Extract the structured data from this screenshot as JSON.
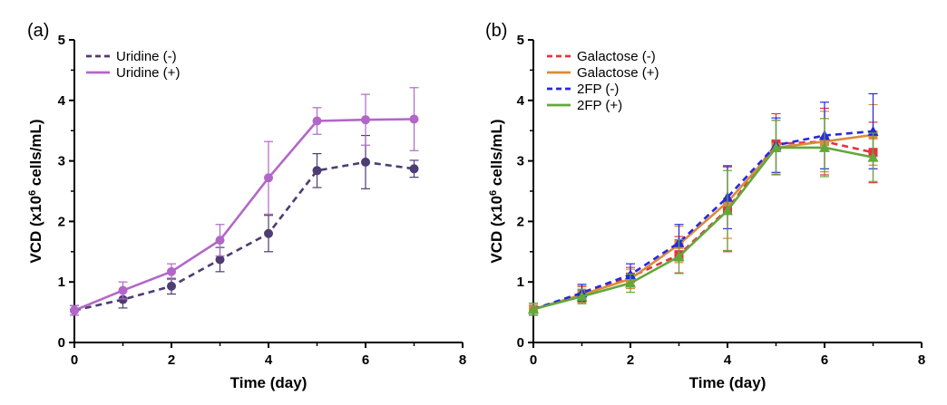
{
  "chart_data": [
    {
      "type": "line",
      "panel_label": "(a)",
      "xlabel": "Time (day)",
      "ylabel_main": "VCD (x10",
      "ylabel_sup": "6",
      "ylabel_tail": " cells/mL)",
      "xlim": [
        0,
        8
      ],
      "ylim": [
        0,
        5
      ],
      "xticks": [
        0,
        2,
        4,
        6,
        8
      ],
      "yticks": [
        0,
        1,
        2,
        3,
        4,
        5
      ],
      "legend_position": "top-left",
      "x": [
        0,
        1,
        2,
        3,
        4,
        5,
        6,
        7
      ],
      "series": [
        {
          "name": "Uridine (-)",
          "color": "#4e3c73",
          "dashed": true,
          "marker": "circle",
          "values": [
            0.53,
            0.71,
            0.93,
            1.37,
            1.8,
            2.84,
            2.98,
            2.87
          ],
          "errors": [
            0.08,
            0.14,
            0.13,
            0.2,
            0.3,
            0.28,
            0.44,
            0.14
          ]
        },
        {
          "name": "Uridine (+)",
          "color": "#b267c8",
          "dashed": false,
          "marker": "circle",
          "values": [
            0.53,
            0.86,
            1.17,
            1.69,
            2.72,
            3.66,
            3.68,
            3.69
          ],
          "errors": [
            0.08,
            0.14,
            0.13,
            0.26,
            0.6,
            0.22,
            0.42,
            0.52
          ]
        }
      ]
    },
    {
      "type": "line",
      "panel_label": "(b)",
      "xlabel": "Time (day)",
      "ylabel_main": "VCD (x10",
      "ylabel_sup": "6",
      "ylabel_tail": " cells/mL)",
      "xlim": [
        0,
        8
      ],
      "ylim": [
        0,
        5
      ],
      "xticks": [
        0,
        2,
        4,
        6,
        8
      ],
      "yticks": [
        0,
        1,
        2,
        3,
        4,
        5
      ],
      "legend_position": "top-left",
      "x": [
        0,
        1,
        2,
        3,
        4,
        5,
        6,
        7
      ],
      "series": [
        {
          "name": "Galactose (-)",
          "color": "#e8323c",
          "dashed": true,
          "marker": "square",
          "values": [
            0.55,
            0.8,
            1.08,
            1.45,
            2.2,
            3.28,
            3.32,
            3.14
          ],
          "errors": [
            0.1,
            0.13,
            0.16,
            0.3,
            0.7,
            0.5,
            0.55,
            0.5
          ]
        },
        {
          "name": "Galactose (+)",
          "color": "#d98c3a",
          "dashed": false,
          "marker": "square",
          "values": [
            0.55,
            0.79,
            1.05,
            1.62,
            2.32,
            3.22,
            3.32,
            3.43
          ],
          "errors": [
            0.1,
            0.13,
            0.16,
            0.3,
            0.6,
            0.45,
            0.5,
            0.5
          ]
        },
        {
          "name": "2FP (-)",
          "color": "#2828e0",
          "dashed": true,
          "marker": "triangle",
          "values": [
            0.55,
            0.82,
            1.12,
            1.65,
            2.4,
            3.26,
            3.42,
            3.49
          ],
          "errors": [
            0.1,
            0.14,
            0.18,
            0.3,
            0.52,
            0.45,
            0.55,
            0.62
          ]
        },
        {
          "name": "2FP (+)",
          "color": "#62a83a",
          "dashed": false,
          "marker": "triangle",
          "values": [
            0.55,
            0.76,
            0.98,
            1.42,
            2.18,
            3.22,
            3.22,
            3.06
          ],
          "errors": [
            0.1,
            0.12,
            0.15,
            0.28,
            0.66,
            0.45,
            0.48,
            0.4
          ]
        }
      ]
    }
  ]
}
